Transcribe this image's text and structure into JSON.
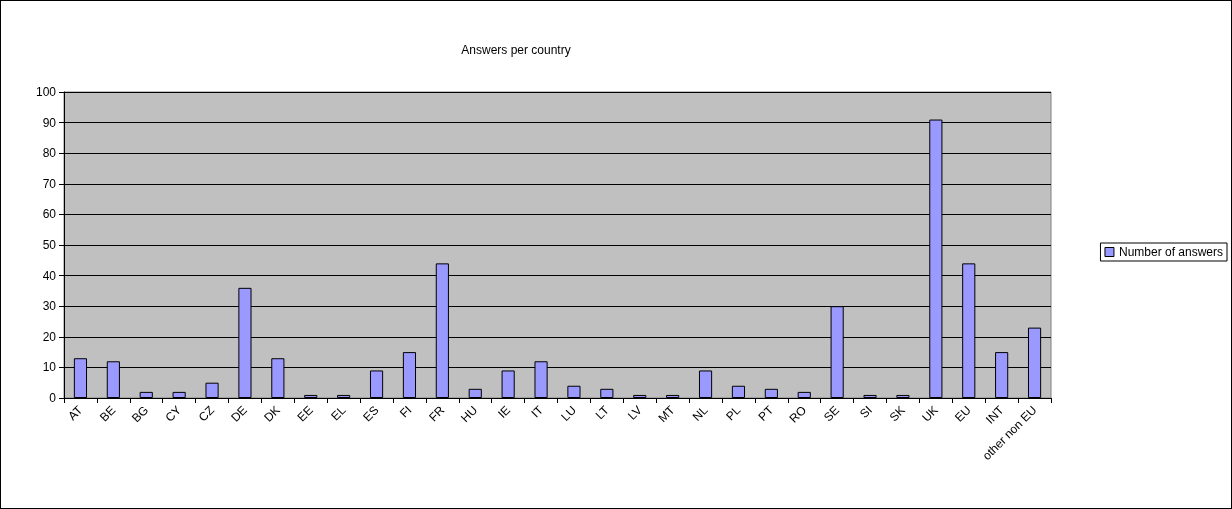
{
  "chart_data": {
    "type": "bar",
    "title": "Answers per country",
    "categories": [
      "AT",
      "BE",
      "BG",
      "CY",
      "CZ",
      "DE",
      "DK",
      "EE",
      "EL",
      "ES",
      "FI",
      "FR",
      "HU",
      "IE",
      "IT",
      "LU",
      "LT",
      "LV",
      "MT",
      "NL",
      "PL",
      "PT",
      "RO",
      "SE",
      "SI",
      "SK",
      "UK",
      "EU",
      "INT",
      "other non EU"
    ],
    "series": [
      {
        "name": "Number of answers",
        "color": "#9999ff",
        "values": [
          13,
          12,
          2,
          2,
          5,
          36,
          13,
          1,
          1,
          9,
          15,
          44,
          3,
          9,
          12,
          4,
          3,
          1,
          1,
          9,
          4,
          3,
          2,
          30,
          1,
          1,
          91,
          44,
          15,
          23
        ]
      }
    ],
    "ylim": [
      0,
      100
    ],
    "yticks": [
      0,
      10,
      20,
      30,
      40,
      50,
      60,
      70,
      80,
      90,
      100
    ],
    "grid": "y",
    "legend": "right"
  }
}
